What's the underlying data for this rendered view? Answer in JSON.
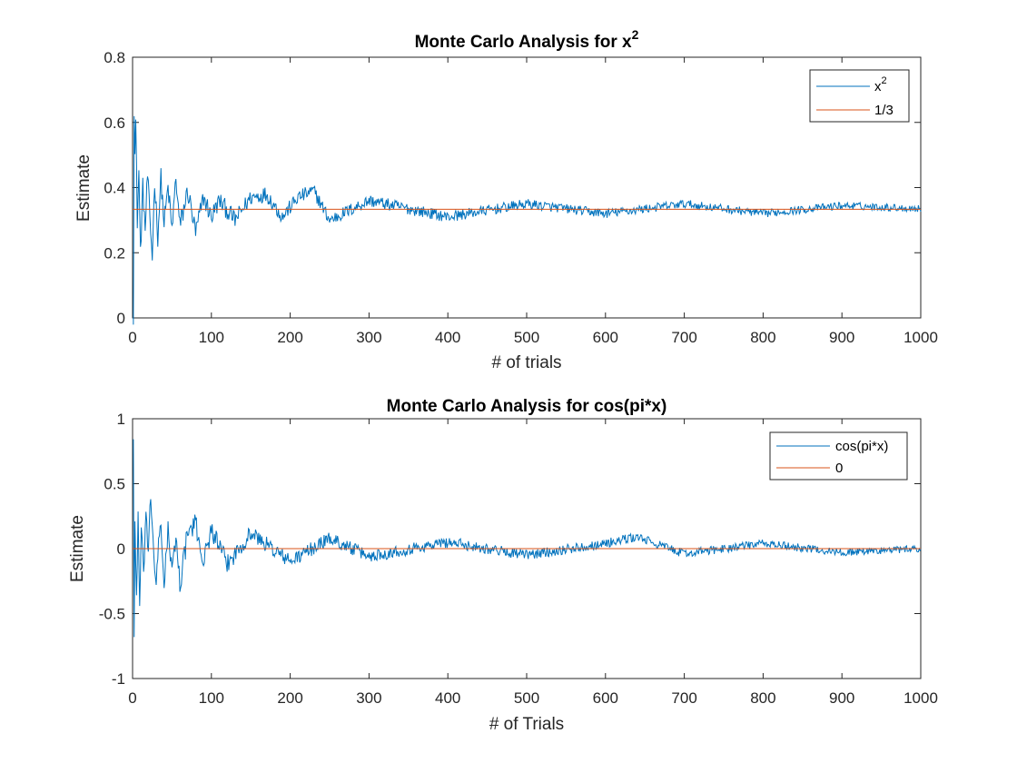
{
  "colors": {
    "series": "#0072BD",
    "reference": "#D95319",
    "axis": "#262626"
  },
  "chart_data": [
    {
      "type": "line",
      "title": "Monte Carlo Analysis for x",
      "title_superscript": "2",
      "xlabel": "# of trials",
      "ylabel": "Estimate",
      "xlim": [
        0,
        1000
      ],
      "ylim": [
        0,
        0.8
      ],
      "xticks": [
        "0",
        "100",
        "200",
        "300",
        "400",
        "500",
        "600",
        "700",
        "800",
        "900",
        "1000"
      ],
      "yticks": [
        "0",
        "0.2",
        "0.4",
        "0.6",
        "0.8"
      ],
      "legend_position": "top-right",
      "series": [
        {
          "name": "x",
          "name_superscript": "2",
          "kind": "noisy-convergence",
          "target": 0.3333,
          "points": [
            [
              1,
              0.01
            ],
            [
              2,
              0.65
            ],
            [
              3,
              0.5
            ],
            [
              4,
              0.6
            ],
            [
              6,
              0.3
            ],
            [
              8,
              0.45
            ],
            [
              10,
              0.2
            ],
            [
              13,
              0.4
            ],
            [
              16,
              0.27
            ],
            [
              19,
              0.44
            ],
            [
              22,
              0.3
            ],
            [
              25,
              0.19
            ],
            [
              28,
              0.42
            ],
            [
              32,
              0.25
            ],
            [
              36,
              0.43
            ],
            [
              40,
              0.29
            ],
            [
              45,
              0.4
            ],
            [
              50,
              0.27
            ],
            [
              55,
              0.43
            ],
            [
              60,
              0.28
            ],
            [
              70,
              0.39
            ],
            [
              80,
              0.26
            ],
            [
              90,
              0.37
            ],
            [
              100,
              0.31
            ],
            [
              110,
              0.36
            ],
            [
              130,
              0.3
            ],
            [
              150,
              0.37
            ],
            [
              170,
              0.38
            ],
            [
              190,
              0.31
            ],
            [
              210,
              0.37
            ],
            [
              230,
              0.39
            ],
            [
              250,
              0.3
            ],
            [
              300,
              0.36
            ],
            [
              400,
              0.31
            ],
            [
              500,
              0.35
            ],
            [
              600,
              0.32
            ],
            [
              700,
              0.35
            ],
            [
              800,
              0.32
            ],
            [
              900,
              0.345
            ],
            [
              1000,
              0.335
            ]
          ]
        },
        {
          "name": "1/3",
          "kind": "constant",
          "value": 0.3333
        }
      ]
    },
    {
      "type": "line",
      "title": "Monte Carlo Analysis for cos(pi*x)",
      "xlabel": "# of Trials",
      "ylabel": "Estimate",
      "xlim": [
        0,
        1000
      ],
      "ylim": [
        -1,
        1
      ],
      "xticks": [
        "0",
        "100",
        "200",
        "300",
        "400",
        "500",
        "600",
        "700",
        "800",
        "900",
        "1000"
      ],
      "yticks": [
        "-1",
        "-0.5",
        "0",
        "0.5",
        "1"
      ],
      "legend_position": "top-right",
      "series": [
        {
          "name": "cos(pi*x)",
          "kind": "noisy-convergence",
          "target": 0,
          "points": [
            [
              1,
              0.87
            ],
            [
              2,
              -0.68
            ],
            [
              3,
              0.2
            ],
            [
              5,
              -0.4
            ],
            [
              7,
              0.3
            ],
            [
              9,
              -0.5
            ],
            [
              11,
              0.15
            ],
            [
              14,
              -0.2
            ],
            [
              17,
              0.3
            ],
            [
              20,
              -0.1
            ],
            [
              23,
              0.43
            ],
            [
              26,
              0.05
            ],
            [
              30,
              -0.28
            ],
            [
              35,
              0.2
            ],
            [
              40,
              -0.25
            ],
            [
              45,
              0.15
            ],
            [
              50,
              -0.2
            ],
            [
              55,
              0.1
            ],
            [
              60,
              -0.27
            ],
            [
              70,
              0.12
            ],
            [
              80,
              0.19
            ],
            [
              90,
              -0.1
            ],
            [
              100,
              0.15
            ],
            [
              120,
              -0.12
            ],
            [
              150,
              0.12
            ],
            [
              200,
              -0.1
            ],
            [
              250,
              0.08
            ],
            [
              300,
              -0.06
            ],
            [
              400,
              0.05
            ],
            [
              500,
              -0.05
            ],
            [
              600,
              0.04
            ],
            [
              640,
              0.09
            ],
            [
              700,
              -0.04
            ],
            [
              800,
              0.04
            ],
            [
              900,
              -0.03
            ],
            [
              1000,
              0.0
            ]
          ]
        },
        {
          "name": "0",
          "kind": "constant",
          "value": 0
        }
      ]
    }
  ]
}
